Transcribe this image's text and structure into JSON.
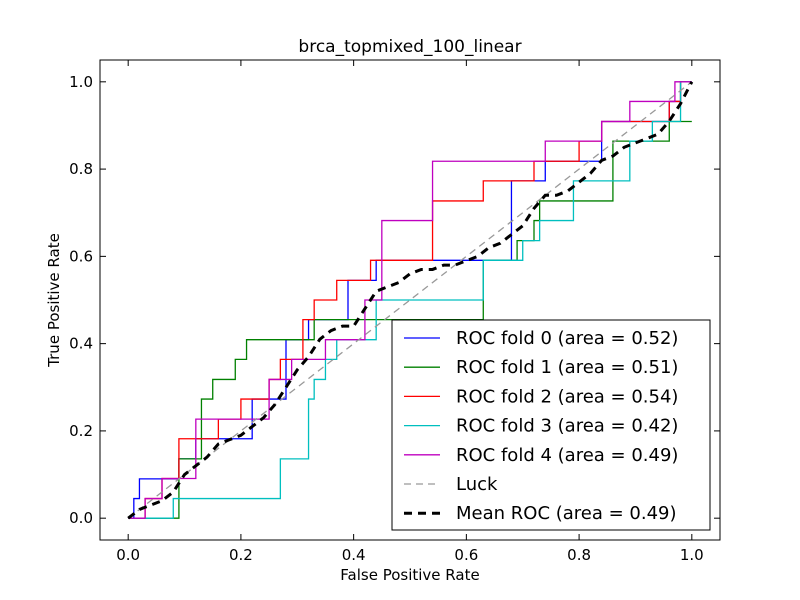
{
  "chart_data": {
    "type": "line",
    "title": "brca_topmixed_100_linear",
    "xlabel": "False Positive Rate",
    "ylabel": "True Positive Rate",
    "xlim": [
      -0.05,
      1.05
    ],
    "ylim": [
      -0.05,
      1.05
    ],
    "xticks": [
      "0.0",
      "0.2",
      "0.4",
      "0.6",
      "0.8",
      "1.0"
    ],
    "yticks": [
      "0.0",
      "0.2",
      "0.4",
      "0.6",
      "0.8",
      "1.0"
    ],
    "grid": false,
    "legend_position": "lower-right",
    "series": [
      {
        "name": "ROC fold 0 (area = 0.52)",
        "color": "#0000ff",
        "style": "step",
        "x": [
          0.0,
          0.01,
          0.01,
          0.02,
          0.02,
          0.09,
          0.09,
          0.12,
          0.12,
          0.22,
          0.22,
          0.28,
          0.28,
          0.32,
          0.32,
          0.39,
          0.39,
          0.44,
          0.44,
          0.45,
          0.45,
          0.68,
          0.68,
          0.74,
          0.74,
          0.79,
          0.79,
          0.84,
          0.84,
          0.96,
          0.96,
          0.98,
          0.98,
          1.0
        ],
        "y": [
          0.0,
          0.0,
          0.045,
          0.045,
          0.09,
          0.09,
          0.136,
          0.136,
          0.182,
          0.182,
          0.273,
          0.273,
          0.409,
          0.409,
          0.455,
          0.455,
          0.545,
          0.545,
          0.591,
          0.591,
          0.591,
          0.591,
          0.773,
          0.773,
          0.818,
          0.818,
          0.818,
          0.818,
          0.909,
          0.909,
          0.955,
          0.955,
          1.0,
          1.0
        ]
      },
      {
        "name": "ROC fold 1 (area = 0.51)",
        "color": "#008000",
        "style": "step",
        "x": [
          0.0,
          0.09,
          0.09,
          0.13,
          0.13,
          0.15,
          0.15,
          0.19,
          0.19,
          0.21,
          0.21,
          0.33,
          0.33,
          0.35,
          0.35,
          0.63,
          0.63,
          0.69,
          0.69,
          0.72,
          0.72,
          0.73,
          0.73,
          0.86,
          0.86,
          0.96,
          0.96,
          1.0
        ],
        "y": [
          0.0,
          0.0,
          0.136,
          0.136,
          0.273,
          0.273,
          0.318,
          0.318,
          0.364,
          0.364,
          0.409,
          0.409,
          0.455,
          0.455,
          0.455,
          0.455,
          0.591,
          0.591,
          0.636,
          0.636,
          0.682,
          0.682,
          0.727,
          0.727,
          0.864,
          0.864,
          0.909,
          0.909
        ]
      },
      {
        "name": "ROC fold 2 (area = 0.54)",
        "color": "#ff0000",
        "style": "step",
        "x": [
          0.0,
          0.03,
          0.03,
          0.06,
          0.06,
          0.09,
          0.09,
          0.16,
          0.16,
          0.2,
          0.2,
          0.25,
          0.25,
          0.27,
          0.27,
          0.31,
          0.31,
          0.33,
          0.33,
          0.37,
          0.37,
          0.43,
          0.43,
          0.54,
          0.54,
          0.63,
          0.63,
          0.72,
          0.72,
          0.8,
          0.8,
          0.84,
          0.84,
          0.96,
          0.96,
          0.98,
          0.98,
          1.0
        ],
        "y": [
          0.0,
          0.0,
          0.045,
          0.045,
          0.091,
          0.091,
          0.182,
          0.182,
          0.227,
          0.227,
          0.273,
          0.273,
          0.318,
          0.318,
          0.364,
          0.364,
          0.455,
          0.455,
          0.5,
          0.5,
          0.545,
          0.545,
          0.591,
          0.591,
          0.727,
          0.727,
          0.773,
          0.773,
          0.818,
          0.818,
          0.864,
          0.864,
          0.909,
          0.909,
          0.955,
          0.955,
          1.0,
          1.0
        ]
      },
      {
        "name": "ROC fold 3 (area = 0.42)",
        "color": "#00bfbf",
        "style": "step",
        "x": [
          0.0,
          0.08,
          0.08,
          0.27,
          0.27,
          0.32,
          0.32,
          0.33,
          0.33,
          0.35,
          0.35,
          0.37,
          0.37,
          0.44,
          0.44,
          0.63,
          0.63,
          0.7,
          0.7,
          0.73,
          0.73,
          0.79,
          0.79,
          0.89,
          0.89,
          0.93,
          0.93,
          0.98,
          0.98,
          1.0
        ],
        "y": [
          0.0,
          0.0,
          0.045,
          0.045,
          0.136,
          0.136,
          0.273,
          0.273,
          0.318,
          0.318,
          0.364,
          0.364,
          0.409,
          0.409,
          0.5,
          0.5,
          0.591,
          0.591,
          0.636,
          0.636,
          0.682,
          0.682,
          0.773,
          0.773,
          0.864,
          0.864,
          0.909,
          0.909,
          1.0,
          1.0
        ]
      },
      {
        "name": "ROC fold 4 (area = 0.49)",
        "color": "#bf00bf",
        "style": "step",
        "x": [
          0.0,
          0.03,
          0.03,
          0.06,
          0.06,
          0.12,
          0.12,
          0.25,
          0.25,
          0.29,
          0.29,
          0.35,
          0.35,
          0.42,
          0.42,
          0.45,
          0.45,
          0.54,
          0.54,
          0.74,
          0.74,
          0.84,
          0.84,
          0.89,
          0.89,
          0.97,
          0.97,
          1.0
        ],
        "y": [
          0.0,
          0.0,
          0.045,
          0.045,
          0.091,
          0.091,
          0.227,
          0.227,
          0.318,
          0.318,
          0.364,
          0.364,
          0.409,
          0.409,
          0.5,
          0.5,
          0.682,
          0.682,
          0.818,
          0.818,
          0.864,
          0.864,
          0.909,
          0.909,
          0.955,
          0.955,
          1.0,
          1.0
        ]
      },
      {
        "name": "Luck",
        "color": "#999999",
        "style": "dashed",
        "x": [
          0.0,
          1.0
        ],
        "y": [
          0.0,
          1.0
        ]
      },
      {
        "name": "Mean ROC (area = 0.49)",
        "color": "#000000",
        "style": "dashed-thick",
        "x": [
          0.0,
          0.02,
          0.04,
          0.06,
          0.08,
          0.1,
          0.12,
          0.14,
          0.16,
          0.18,
          0.2,
          0.22,
          0.24,
          0.26,
          0.28,
          0.3,
          0.32,
          0.34,
          0.36,
          0.38,
          0.4,
          0.42,
          0.44,
          0.46,
          0.48,
          0.5,
          0.52,
          0.54,
          0.56,
          0.58,
          0.6,
          0.62,
          0.64,
          0.66,
          0.68,
          0.7,
          0.72,
          0.74,
          0.76,
          0.78,
          0.8,
          0.82,
          0.84,
          0.86,
          0.88,
          0.9,
          0.92,
          0.94,
          0.96,
          0.98,
          1.0
        ],
        "y": [
          0.0,
          0.02,
          0.03,
          0.04,
          0.06,
          0.1,
          0.12,
          0.14,
          0.17,
          0.18,
          0.19,
          0.21,
          0.23,
          0.26,
          0.3,
          0.34,
          0.37,
          0.41,
          0.43,
          0.44,
          0.44,
          0.48,
          0.52,
          0.53,
          0.54,
          0.56,
          0.57,
          0.57,
          0.58,
          0.58,
          0.59,
          0.6,
          0.62,
          0.63,
          0.65,
          0.67,
          0.71,
          0.74,
          0.74,
          0.75,
          0.77,
          0.79,
          0.82,
          0.83,
          0.85,
          0.86,
          0.87,
          0.88,
          0.91,
          0.95,
          1.0
        ]
      }
    ]
  }
}
